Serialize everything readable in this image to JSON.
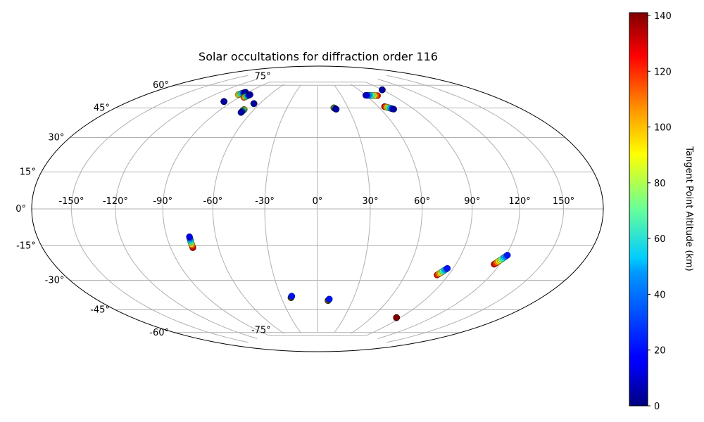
{
  "chart_data": {
    "type": "scatter",
    "projection": "Hammer (Aitoff-Hammer) all-sky map",
    "title": "Solar occultations for diffraction order 116",
    "xlabel": "",
    "ylabel": "",
    "x_tick_labels": [
      "-150°",
      "-120°",
      "-90°",
      "-60°",
      "-30°",
      "0°",
      "30°",
      "60°",
      "90°",
      "120°",
      "150°"
    ],
    "y_tick_labels": [
      "-75°",
      "-60°",
      "-45°",
      "-30°",
      "-15°",
      "0°",
      "15°",
      "30°",
      "45°",
      "60°",
      "75°"
    ],
    "xlim": [
      -180,
      180
    ],
    "ylim": [
      -90,
      90
    ],
    "grid": true,
    "colorbar": {
      "label": "Tangent Point Altitude (km)",
      "colormap": "jet",
      "range": [
        0,
        141
      ],
      "tick_labels": [
        "0",
        "20",
        "40",
        "60",
        "80",
        "100",
        "120",
        "140"
      ]
    },
    "tracks": [
      {
        "lon_start": -93,
        "lat_start": 67,
        "lon_end": -96,
        "lat_end": 65,
        "alt_start": 5,
        "alt_end": 100
      },
      {
        "lon_start": -98,
        "lat_start": 60,
        "lon_end": -98,
        "lat_end": 60,
        "alt_start": 5,
        "alt_end": 5
      },
      {
        "lon_start": -83,
        "lat_start": 66,
        "lon_end": -85,
        "lat_end": 64,
        "alt_start": 5,
        "alt_end": 115
      },
      {
        "lon_start": -66,
        "lat_start": 61,
        "lon_end": -66,
        "lat_end": 61,
        "alt_start": 5,
        "alt_end": 5
      },
      {
        "lon_start": -69,
        "lat_start": 55,
        "lon_end": -69,
        "lat_end": 57,
        "alt_start": 5,
        "alt_end": 100
      },
      {
        "lon_start": 18,
        "lat_start": 59,
        "lon_end": 16,
        "lat_end": 60,
        "alt_start": 5,
        "alt_end": 100
      },
      {
        "lon_start": 60,
        "lat_start": 67,
        "lon_end": 73,
        "lat_end": 66,
        "alt_start": 10,
        "alt_end": 125
      },
      {
        "lon_start": 72,
        "lat_start": 57,
        "lon_end": 66,
        "lat_end": 59,
        "alt_start": 5,
        "alt_end": 130
      },
      {
        "lon_start": 90,
        "lat_start": 69,
        "lon_end": 90,
        "lat_end": 69,
        "alt_start": 5,
        "alt_end": 5
      },
      {
        "lon_start": -76,
        "lat_start": -15,
        "lon_end": -76,
        "lat_end": -21,
        "alt_start": 15,
        "alt_end": 135
      },
      {
        "lon_start": -21,
        "lat_start": -51,
        "lon_end": -22,
        "lat_end": -52,
        "alt_start": 20,
        "alt_end": 135
      },
      {
        "lon_start": 10,
        "lat_start": -53,
        "lon_end": 9,
        "lat_end": -54,
        "alt_start": 20,
        "alt_end": 140
      },
      {
        "lon_start": 86,
        "lat_start": -32,
        "lon_end": 82,
        "lat_end": -36,
        "alt_start": 20,
        "alt_end": 125
      },
      {
        "lon_start": 121,
        "lat_start": -23,
        "lon_end": 116,
        "lat_end": -28,
        "alt_start": 20,
        "alt_end": 130
      },
      {
        "lon_start": 86,
        "lat_start": -62,
        "lon_end": 86,
        "lat_end": -62,
        "alt_start": 141,
        "alt_end": 141
      }
    ]
  }
}
